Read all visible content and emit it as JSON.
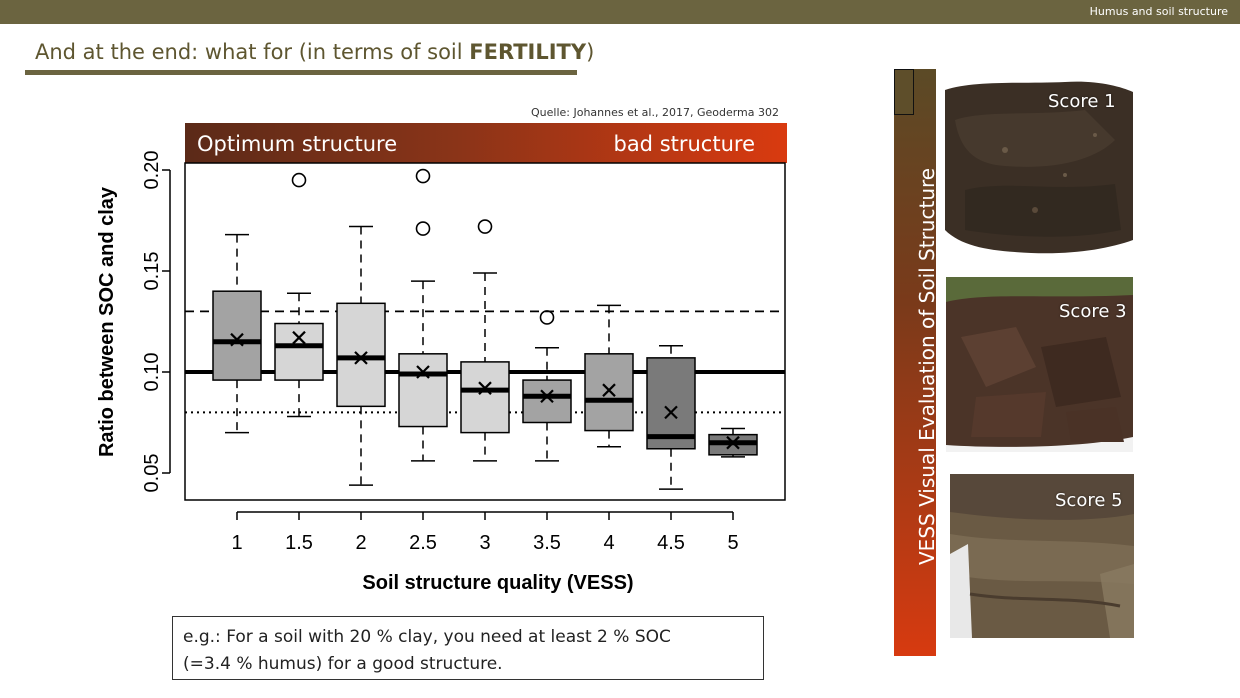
{
  "header": {
    "section_label": "Humus and soil structure"
  },
  "slide": {
    "title_normal": "And at the end: what for (in terms of soil ",
    "title_bold": "FERTILITY",
    "title_end": ")",
    "source": "Quelle: Johannes et al., 2017, Geoderma  302"
  },
  "band": {
    "left_label": "Optimum structure",
    "right_label": "bad structure"
  },
  "note": {
    "line1": "e.g.: For a soil with 20 % clay, you need at least 2 % SOC",
    "line2": "(=3.4 % humus) for a good structure."
  },
  "vess": {
    "label": "VESS Visual Evaluation of Soil Structure",
    "photos": [
      {
        "label": "Score 1"
      },
      {
        "label": "Score 3"
      },
      {
        "label": "Score 5"
      }
    ]
  },
  "colors": {
    "header_bar": "#6b6440",
    "title_text": "#5e5630",
    "band_start": "#5b2a18",
    "band_end": "#d93a10",
    "box_light": "#d6d6d6",
    "box_dark": "#a3a3a3",
    "box_darker": "#7a7a7a"
  },
  "chart_data": {
    "type": "box",
    "xlabel": "Soil structure quality (VESS)",
    "ylabel": "Ratio between SOC and clay",
    "categories": [
      "1",
      "1.5",
      "2",
      "2.5",
      "3",
      "3.5",
      "4",
      "4.5",
      "5"
    ],
    "yticks": [
      "0.05",
      "0.10",
      "0.15",
      "0.20"
    ],
    "ylim": [
      0.036,
      0.23
    ],
    "boxes": [
      {
        "category": "1",
        "whisker_low": 0.07,
        "q1": 0.096,
        "median": 0.115,
        "q3": 0.14,
        "whisker_high": 0.168,
        "mean": 0.116,
        "outliers": [],
        "shade": "dark"
      },
      {
        "category": "1.5",
        "whisker_low": 0.078,
        "q1": 0.096,
        "median": 0.113,
        "q3": 0.124,
        "whisker_high": 0.139,
        "mean": 0.117,
        "outliers": [
          0.195
        ],
        "shade": "light"
      },
      {
        "category": "2",
        "whisker_low": 0.044,
        "q1": 0.083,
        "median": 0.107,
        "q3": 0.134,
        "whisker_high": 0.172,
        "mean": 0.107,
        "outliers": [],
        "shade": "light"
      },
      {
        "category": "2.5",
        "whisker_low": 0.056,
        "q1": 0.073,
        "median": 0.099,
        "q3": 0.109,
        "whisker_high": 0.145,
        "mean": 0.1,
        "outliers": [
          0.197,
          0.171
        ],
        "shade": "light"
      },
      {
        "category": "3",
        "whisker_low": 0.056,
        "q1": 0.07,
        "median": 0.091,
        "q3": 0.105,
        "whisker_high": 0.149,
        "mean": 0.092,
        "outliers": [
          0.172
        ],
        "shade": "light"
      },
      {
        "category": "3.5",
        "whisker_low": 0.056,
        "q1": 0.075,
        "median": 0.088,
        "q3": 0.096,
        "whisker_high": 0.112,
        "mean": 0.088,
        "outliers": [
          0.127
        ],
        "shade": "dark"
      },
      {
        "category": "4",
        "whisker_low": 0.063,
        "q1": 0.071,
        "median": 0.086,
        "q3": 0.109,
        "whisker_high": 0.133,
        "mean": 0.091,
        "outliers": [],
        "shade": "dark"
      },
      {
        "category": "4.5",
        "whisker_low": 0.042,
        "q1": 0.062,
        "median": 0.068,
        "q3": 0.107,
        "whisker_high": 0.113,
        "mean": 0.08,
        "outliers": [],
        "shade": "darker"
      },
      {
        "category": "5",
        "whisker_low": 0.058,
        "q1": 0.059,
        "median": 0.065,
        "q3": 0.069,
        "whisker_high": 0.072,
        "mean": 0.065,
        "outliers": [],
        "shade": "darker"
      }
    ],
    "reference_lines": [
      {
        "value": 0.13,
        "style": "dashed"
      },
      {
        "value": 0.1,
        "style": "solid"
      },
      {
        "value": 0.08,
        "style": "dotted"
      }
    ],
    "grid": false,
    "legend": "none"
  }
}
